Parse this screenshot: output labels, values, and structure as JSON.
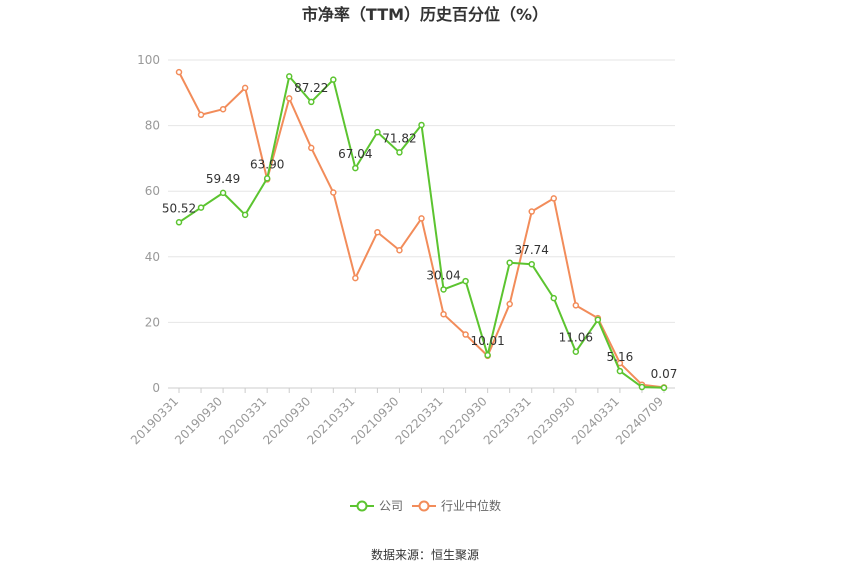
{
  "chart_data": {
    "type": "line",
    "title": "市净率（TTM）历史百分位（%）",
    "xlabel": "",
    "ylabel": "",
    "ylim": [
      0,
      100
    ],
    "yticks": [
      0,
      20,
      40,
      60,
      80,
      100
    ],
    "x": [
      "20190331",
      "20190630",
      "20190930",
      "20191231",
      "20200331",
      "20200630",
      "20200930",
      "20201231",
      "20210331",
      "20210630",
      "20210930",
      "20211231",
      "20220331",
      "20220630",
      "20220930",
      "20221231",
      "20230331",
      "20230630",
      "20230930",
      "20231231",
      "20240331",
      "20240630",
      "20240709"
    ],
    "x_tick_labels": [
      "20190331",
      "20190930",
      "20200331",
      "20200930",
      "20210331",
      "20210930",
      "20220331",
      "20220930",
      "20230331",
      "20230930",
      "20240331",
      "20240709"
    ],
    "grid": true,
    "legend_position": "bottom",
    "series": [
      {
        "name": "公司",
        "color": "#5cc430",
        "values": [
          50.52,
          55.0,
          59.49,
          52.8,
          63.9,
          95.0,
          87.22,
          94.0,
          67.04,
          78.0,
          71.82,
          80.2,
          30.04,
          32.6,
          10.01,
          38.2,
          37.74,
          27.4,
          11.06,
          20.8,
          5.16,
          0.3,
          0.07
        ],
        "labels": {
          "0": "50.52",
          "2": "59.49",
          "4": "63.90",
          "6": "87.22",
          "8": "67.04",
          "10": "71.82",
          "12": "30.04",
          "14": "10.01",
          "16": "37.74",
          "18": "11.06",
          "20": "5.16",
          "22": "0.07"
        }
      },
      {
        "name": "行业中位数",
        "color": "#f28c5a",
        "values": [
          96.3,
          83.3,
          85.0,
          91.5,
          63.6,
          88.3,
          73.2,
          59.6,
          33.5,
          47.5,
          42.0,
          51.7,
          22.5,
          16.3,
          9.8,
          25.6,
          53.8,
          57.8,
          25.2,
          21.3,
          7.6,
          1.0,
          0.2
        ]
      }
    ]
  },
  "source_text": "数据来源：恒生聚源"
}
